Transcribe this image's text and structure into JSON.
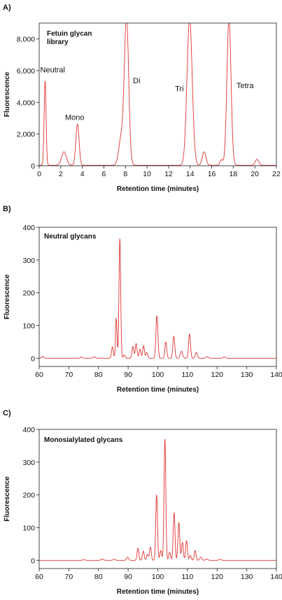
{
  "chart_data": [
    {
      "panel": "A)",
      "type": "line",
      "inset_title_lines": [
        "Fetuin glycan",
        "library"
      ],
      "xlabel": "Retention time (minutes)",
      "ylabel": "Fluorescence",
      "xlim": [
        0,
        22
      ],
      "ylim": [
        0,
        9000
      ],
      "xticks": [
        0,
        2,
        4,
        6,
        8,
        10,
        12,
        14,
        16,
        18,
        20,
        22
      ],
      "yticks": [
        0,
        2000,
        4000,
        6000,
        8000
      ],
      "ytick_labels": [
        "0",
        "2,000",
        "4,000",
        "6,000",
        "8,000"
      ],
      "grid": false,
      "baseline": 30,
      "peaks": [
        {
          "x": 0.55,
          "h": 5300,
          "w": 0.09
        },
        {
          "x": 2.3,
          "h": 850,
          "w": 0.22
        },
        {
          "x": 3.55,
          "h": 2600,
          "w": 0.15
        },
        {
          "x": 7.6,
          "h": 1700,
          "w": 0.22
        },
        {
          "x": 8.1,
          "h": 9300,
          "w": 0.2
        },
        {
          "x": 13.95,
          "h": 9300,
          "w": 0.24
        },
        {
          "x": 15.3,
          "h": 850,
          "w": 0.17
        },
        {
          "x": 16.9,
          "h": 350,
          "w": 0.13
        },
        {
          "x": 17.6,
          "h": 9300,
          "w": 0.19
        },
        {
          "x": 20.2,
          "h": 380,
          "w": 0.16
        }
      ],
      "annotations": [
        {
          "text": "Neutral",
          "x": 0.1,
          "y": 5900
        },
        {
          "text": "Mono",
          "x": 2.4,
          "y": 2900
        },
        {
          "text": "Di",
          "x": 8.7,
          "y": 5200
        },
        {
          "text": "Tri",
          "x": 12.6,
          "y": 4700
        },
        {
          "text": "Tetra",
          "x": 18.3,
          "y": 4900
        }
      ]
    },
    {
      "panel": "B)",
      "type": "line",
      "inset_title_lines": [
        "Neutral glycans"
      ],
      "xlabel": "Retention time (minutes)",
      "ylabel": "Fluorescence",
      "xlim": [
        60,
        140
      ],
      "ylim": [
        -25,
        400
      ],
      "xticks": [
        60,
        70,
        80,
        90,
        100,
        110,
        120,
        130,
        140
      ],
      "yticks": [
        0,
        100,
        200,
        300,
        400
      ],
      "ytick_labels": [
        "0",
        "100",
        "200",
        "300",
        "400"
      ],
      "grid": false,
      "baseline": 0,
      "peaks": [
        {
          "x": 61.2,
          "h": 6,
          "w": 0.3
        },
        {
          "x": 74.2,
          "h": 4,
          "w": 0.3
        },
        {
          "x": 78.5,
          "h": 4,
          "w": 0.4
        },
        {
          "x": 84.7,
          "h": 35,
          "w": 0.3
        },
        {
          "x": 86.0,
          "h": 122,
          "w": 0.25
        },
        {
          "x": 87.2,
          "h": 365,
          "w": 0.28
        },
        {
          "x": 88.7,
          "h": 10,
          "w": 0.3
        },
        {
          "x": 91.6,
          "h": 36,
          "w": 0.3
        },
        {
          "x": 92.7,
          "h": 45,
          "w": 0.3
        },
        {
          "x": 94.0,
          "h": 28,
          "w": 0.3
        },
        {
          "x": 95.2,
          "h": 38,
          "w": 0.3
        },
        {
          "x": 96.3,
          "h": 18,
          "w": 0.3
        },
        {
          "x": 99.7,
          "h": 130,
          "w": 0.33
        },
        {
          "x": 102.7,
          "h": 50,
          "w": 0.3
        },
        {
          "x": 105.4,
          "h": 67,
          "w": 0.33
        },
        {
          "x": 108.0,
          "h": 22,
          "w": 0.4
        },
        {
          "x": 110.7,
          "h": 74,
          "w": 0.33
        },
        {
          "x": 113.0,
          "h": 18,
          "w": 0.35
        },
        {
          "x": 116.6,
          "h": 5,
          "w": 0.4
        },
        {
          "x": 122.4,
          "h": 4,
          "w": 0.4
        }
      ],
      "annotations": []
    },
    {
      "panel": "C)",
      "type": "line",
      "inset_title_lines": [
        "Monosialylated glycans"
      ],
      "xlabel": "Retention time (minutes)",
      "ylabel": "Fluorescence",
      "xlim": [
        60,
        140
      ],
      "ylim": [
        -25,
        400
      ],
      "xticks": [
        60,
        70,
        80,
        90,
        100,
        110,
        120,
        130,
        140
      ],
      "yticks": [
        0,
        100,
        200,
        300,
        400
      ],
      "ytick_labels": [
        "0",
        "100",
        "200",
        "300",
        "400"
      ],
      "grid": false,
      "baseline": 0,
      "peaks": [
        {
          "x": 75.0,
          "h": 2,
          "w": 0.4
        },
        {
          "x": 81.3,
          "h": 4,
          "w": 0.4
        },
        {
          "x": 85.3,
          "h": 3,
          "w": 0.4
        },
        {
          "x": 89.8,
          "h": 10,
          "w": 0.35
        },
        {
          "x": 93.3,
          "h": 37,
          "w": 0.3
        },
        {
          "x": 95.1,
          "h": 28,
          "w": 0.3
        },
        {
          "x": 96.5,
          "h": 18,
          "w": 0.3
        },
        {
          "x": 97.5,
          "h": 40,
          "w": 0.3
        },
        {
          "x": 99.6,
          "h": 200,
          "w": 0.3
        },
        {
          "x": 101.0,
          "h": 30,
          "w": 0.3
        },
        {
          "x": 102.4,
          "h": 370,
          "w": 0.3
        },
        {
          "x": 104.0,
          "h": 25,
          "w": 0.3
        },
        {
          "x": 105.5,
          "h": 145,
          "w": 0.3
        },
        {
          "x": 107.1,
          "h": 115,
          "w": 0.3
        },
        {
          "x": 108.3,
          "h": 55,
          "w": 0.3
        },
        {
          "x": 109.7,
          "h": 60,
          "w": 0.3
        },
        {
          "x": 111.0,
          "h": 15,
          "w": 0.3
        },
        {
          "x": 112.6,
          "h": 30,
          "w": 0.3
        },
        {
          "x": 114.5,
          "h": 10,
          "w": 0.35
        },
        {
          "x": 116.5,
          "h": 4,
          "w": 0.4
        },
        {
          "x": 121.0,
          "h": 3,
          "w": 0.4
        }
      ],
      "annotations": []
    }
  ],
  "colors": {
    "trace": "#e0332f",
    "axis": "#333333",
    "text": "#111111"
  }
}
